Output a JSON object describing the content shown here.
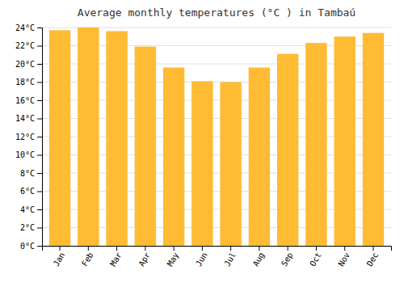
{
  "chart_data": {
    "type": "bar",
    "title": "Average monthly temperatures (°C ) in Tambaú",
    "categories": [
      "Jan",
      "Feb",
      "Mar",
      "Apr",
      "May",
      "Jun",
      "Jul",
      "Aug",
      "Sep",
      "Oct",
      "Nov",
      "Dec"
    ],
    "values": [
      23.7,
      24.0,
      23.6,
      21.9,
      19.6,
      18.1,
      18.0,
      19.6,
      21.1,
      22.3,
      23.0,
      23.4
    ],
    "color": "#FFBB33",
    "ylim": [
      0,
      24
    ],
    "yticks": [
      {
        "value": 0,
        "label": "0°C"
      },
      {
        "value": 2,
        "label": "2°C"
      },
      {
        "value": 4,
        "label": "4°C"
      },
      {
        "value": 6,
        "label": "6°C"
      },
      {
        "value": 8,
        "label": "8°C"
      },
      {
        "value": 10,
        "label": "10°C"
      },
      {
        "value": 12,
        "label": "12°C"
      },
      {
        "value": 14,
        "label": "14°C"
      },
      {
        "value": 16,
        "label": "16°C"
      },
      {
        "value": 18,
        "label": "18°C"
      },
      {
        "value": 20,
        "label": "20°C"
      },
      {
        "value": 22,
        "label": "22°C"
      },
      {
        "value": 24,
        "label": "24°C"
      }
    ],
    "grid": true
  }
}
